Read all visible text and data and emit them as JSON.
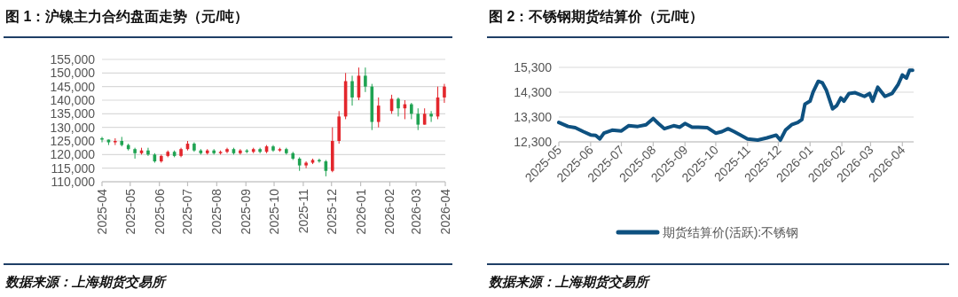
{
  "chart_data": [
    {
      "type": "candlestick",
      "title": "图 1：沪镍主力合约盘面走势（元/吨）",
      "annotations": [
        "数据来源：上海期货交易所"
      ],
      "grid": "y",
      "legend": false,
      "x": [
        "2025-04-01",
        "2025-04-08",
        "2025-04-15",
        "2025-04-22",
        "2025-04-29",
        "2025-05-06",
        "2025-05-13",
        "2025-05-20",
        "2025-05-27",
        "2025-06-03",
        "2025-06-10",
        "2025-06-17",
        "2025-06-24",
        "2025-07-01",
        "2025-07-08",
        "2025-07-15",
        "2025-07-22",
        "2025-07-29",
        "2025-08-05",
        "2025-08-12",
        "2025-08-19",
        "2025-08-26",
        "2025-09-02",
        "2025-09-09",
        "2025-09-16",
        "2025-09-23",
        "2025-09-30",
        "2025-10-07",
        "2025-10-14",
        "2025-10-21",
        "2025-10-28",
        "2025-11-04",
        "2025-11-11",
        "2025-11-18",
        "2025-11-25",
        "2025-12-02",
        "2025-12-09",
        "2025-12-16",
        "2025-12-23",
        "2025-12-30",
        "2026-01-06",
        "2026-01-13",
        "2026-01-20",
        "2026-02-03",
        "2026-02-10",
        "2026-02-17",
        "2026-02-24",
        "2026-03-03",
        "2026-03-10",
        "2026-03-17",
        "2026-03-24",
        "2026-03-31"
      ],
      "ohlc": [
        [
          126000,
          126500,
          124500,
          125500
        ],
        [
          125500,
          125500,
          123500,
          124500
        ],
        [
          124500,
          126000,
          123500,
          125000
        ],
        [
          125000,
          126500,
          123000,
          123500
        ],
        [
          123500,
          124000,
          121500,
          122000
        ],
        [
          122000,
          122500,
          118500,
          120500
        ],
        [
          120500,
          122500,
          120000,
          121500
        ],
        [
          121500,
          122500,
          119500,
          120000
        ],
        [
          120000,
          120500,
          117000,
          117500
        ],
        [
          117500,
          120000,
          117000,
          119500
        ],
        [
          119500,
          121500,
          119000,
          121000
        ],
        [
          121000,
          121500,
          119000,
          119500
        ],
        [
          119500,
          122500,
          119000,
          122000
        ],
        [
          122000,
          125000,
          121500,
          124000
        ],
        [
          124000,
          124500,
          121000,
          121500
        ],
        [
          121500,
          122000,
          120000,
          120500
        ],
        [
          120500,
          122000,
          120000,
          121500
        ],
        [
          121500,
          122000,
          120000,
          120500
        ],
        [
          120500,
          121500,
          120000,
          121000
        ],
        [
          121000,
          122500,
          120500,
          122000
        ],
        [
          122000,
          122500,
          120000,
          120500
        ],
        [
          120500,
          122000,
          120000,
          121500
        ],
        [
          121500,
          122000,
          120500,
          121000
        ],
        [
          121000,
          122500,
          120500,
          122000
        ],
        [
          122000,
          122500,
          120500,
          121000
        ],
        [
          121000,
          123500,
          120500,
          123000
        ],
        [
          123000,
          123500,
          121000,
          121500
        ],
        [
          121500,
          122500,
          121000,
          122000
        ],
        [
          122000,
          122500,
          120000,
          120500
        ],
        [
          120500,
          121000,
          118000,
          118500
        ],
        [
          118500,
          119000,
          114000,
          116000
        ],
        [
          116000,
          117500,
          115000,
          117000
        ],
        [
          117000,
          118500,
          116500,
          118000
        ],
        [
          118000,
          118500,
          117000,
          117500
        ],
        [
          117500,
          118000,
          112000,
          114000
        ],
        [
          114000,
          130000,
          113500,
          125000
        ],
        [
          125000,
          136000,
          124000,
          134000
        ],
        [
          134000,
          150000,
          133000,
          147000
        ],
        [
          147000,
          149000,
          138000,
          141000
        ],
        [
          141000,
          152000,
          140000,
          149000
        ],
        [
          149000,
          152000,
          143000,
          145000
        ],
        [
          145000,
          146000,
          129000,
          132000
        ],
        [
          132000,
          141000,
          130000,
          138000
        ],
        [
          136000,
          142000,
          135000,
          140500
        ],
        [
          140500,
          141000,
          134000,
          137000
        ],
        [
          137000,
          140000,
          133000,
          138500
        ],
        [
          138500,
          139000,
          133000,
          135000
        ],
        [
          135000,
          137000,
          129000,
          131000
        ],
        [
          131000,
          137000,
          131000,
          135000
        ],
        [
          135000,
          136000,
          132000,
          134000
        ],
        [
          134000,
          145000,
          133000,
          141000
        ],
        [
          141000,
          146000,
          139000,
          145000
        ]
      ],
      "ylim": [
        110000,
        155000
      ],
      "yticks": [
        {
          "value": 110000,
          "label": "110,000"
        },
        {
          "value": 115000,
          "label": "115,000"
        },
        {
          "value": 120000,
          "label": "120,000"
        },
        {
          "value": 125000,
          "label": "125,000"
        },
        {
          "value": 130000,
          "label": "130,000"
        },
        {
          "value": 135000,
          "label": "135,000"
        },
        {
          "value": 140000,
          "label": "140,000"
        },
        {
          "value": 145000,
          "label": "145,000"
        },
        {
          "value": 150000,
          "label": "150,000"
        },
        {
          "value": 155000,
          "label": "155,000"
        }
      ],
      "xlim": [
        "2025-04-01",
        "2026-04-01"
      ],
      "xticks": [
        {
          "value": "2025-04-01",
          "label": "2025-04"
        },
        {
          "value": "2025-05-01",
          "label": "2025-05"
        },
        {
          "value": "2025-06-01",
          "label": "2025-06"
        },
        {
          "value": "2025-07-01",
          "label": "2025-07"
        },
        {
          "value": "2025-08-01",
          "label": "2025-08"
        },
        {
          "value": "2025-09-01",
          "label": "2025-09"
        },
        {
          "value": "2025-10-01",
          "label": "2025-10"
        },
        {
          "value": "2025-11-01",
          "label": "2025-11"
        },
        {
          "value": "2025-12-01",
          "label": "2025-12"
        },
        {
          "value": "2026-01-01",
          "label": "2026-01"
        },
        {
          "value": "2026-02-01",
          "label": "2026-02"
        },
        {
          "value": "2026-03-01",
          "label": "2026-03"
        },
        {
          "value": "2026-04-01",
          "label": "2026-04"
        }
      ]
    },
    {
      "type": "line",
      "title": "图 2：不锈钢期货结算价（元/吨）",
      "annotations": [
        "数据来源：上海期货交易所"
      ],
      "grid": "y",
      "legend": "bottom",
      "x": [
        "2025-05-01",
        "2025-05-10",
        "2025-05-17",
        "2025-05-25",
        "2025-06-01",
        "2025-06-06",
        "2025-06-10",
        "2025-06-14",
        "2025-06-22",
        "2025-07-01",
        "2025-07-08",
        "2025-07-17",
        "2025-07-25",
        "2025-08-01",
        "2025-08-06",
        "2025-08-12",
        "2025-08-21",
        "2025-08-27",
        "2025-09-01",
        "2025-09-08",
        "2025-09-14",
        "2025-09-23",
        "2025-10-01",
        "2025-10-07",
        "2025-10-13",
        "2025-10-19",
        "2025-10-25",
        "2025-11-01",
        "2025-11-11",
        "2025-11-20",
        "2025-11-29",
        "2025-12-03",
        "2025-12-08",
        "2025-12-14",
        "2025-12-20",
        "2025-12-24",
        "2025-12-27",
        "2026-01-01",
        "2026-01-04",
        "2026-01-09",
        "2026-01-13",
        "2026-01-17",
        "2026-01-23",
        "2026-01-27",
        "2026-01-31",
        "2026-02-03",
        "2026-02-08",
        "2026-02-14",
        "2026-02-23",
        "2026-02-28",
        "2026-03-03",
        "2026-03-08",
        "2026-03-15",
        "2026-03-22",
        "2026-03-28",
        "2026-04-01",
        "2026-04-05",
        "2026-04-08",
        "2026-04-11"
      ],
      "series": [
        {
          "name": "期货结算价(活跃):不锈钢",
          "color": "#0e5180",
          "values": [
            13080,
            12920,
            12870,
            12710,
            12580,
            12560,
            12420,
            12650,
            12770,
            12740,
            12950,
            12920,
            12990,
            13240,
            13040,
            12830,
            12950,
            12890,
            13040,
            12890,
            12890,
            12870,
            12650,
            12710,
            12830,
            12710,
            12580,
            12420,
            12370,
            12460,
            12570,
            12370,
            12770,
            12990,
            13080,
            13200,
            13820,
            13940,
            14310,
            14740,
            14680,
            14370,
            13630,
            13760,
            14070,
            13940,
            14250,
            14280,
            14130,
            14250,
            13940,
            14500,
            14130,
            14250,
            14620,
            14990,
            14870,
            15180,
            15180
          ]
        }
      ],
      "ylim": [
        12300,
        15300
      ],
      "yticks": [
        {
          "value": 12300,
          "label": "12,300"
        },
        {
          "value": 13300,
          "label": "13,300"
        },
        {
          "value": 14300,
          "label": "14,300"
        },
        {
          "value": 15300,
          "label": "15,300"
        }
      ],
      "xlim": [
        "2025-05-01",
        "2026-04-12"
      ],
      "xticks": [
        {
          "value": "2025-05-01",
          "label": "2025-05"
        },
        {
          "value": "2025-06-01",
          "label": "2025-06"
        },
        {
          "value": "2025-07-01",
          "label": "2025-07"
        },
        {
          "value": "2025-08-01",
          "label": "2025-08"
        },
        {
          "value": "2025-09-01",
          "label": "2025-09"
        },
        {
          "value": "2025-10-01",
          "label": "2025-10"
        },
        {
          "value": "2025-11-01",
          "label": "2025-11"
        },
        {
          "value": "2025-12-01",
          "label": "2025-12"
        },
        {
          "value": "2026-01-01",
          "label": "2026-01"
        },
        {
          "value": "2026-02-01",
          "label": "2026-02"
        },
        {
          "value": "2026-03-01",
          "label": "2026-03"
        },
        {
          "value": "2026-04-01",
          "label": "2026-04"
        }
      ]
    }
  ]
}
